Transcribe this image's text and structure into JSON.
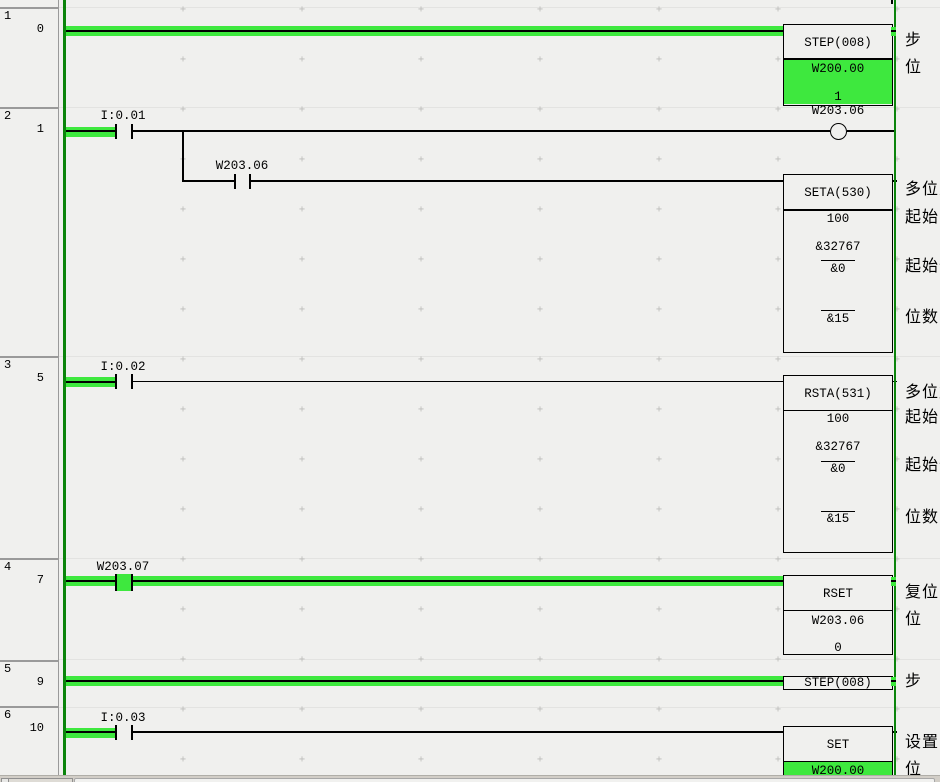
{
  "editor": {
    "colors": {
      "power": "#3ee83e",
      "bus": "#0b840b",
      "background": "#f0f0ee"
    },
    "rung_margin": [
      {
        "number": "1",
        "step": "0"
      },
      {
        "number": "2",
        "step": "1"
      },
      {
        "number": "3",
        "step": "5"
      },
      {
        "number": "4",
        "step": "7"
      },
      {
        "number": "5",
        "step": "9"
      },
      {
        "number": "6",
        "step": "10"
      }
    ],
    "contacts": {
      "i001": "I:0.01",
      "w20306": "W203.06",
      "i002": "I:0.02",
      "w20307": "W203.07",
      "i003": "I:0.03"
    },
    "coil": {
      "operand": "W203.06"
    },
    "blocks": {
      "step1": {
        "mnemonic": "STEP(008)",
        "operand": "W200.00",
        "value": "1"
      },
      "seta": {
        "mnemonic": "SETA(530)",
        "op1": "100",
        "op1_value": "&32767",
        "op2": "&0",
        "op3": "&15"
      },
      "rsta": {
        "mnemonic": "RSTA(531)",
        "op1": "100",
        "op1_value": "&32767",
        "op2": "&0",
        "op3": "&15"
      },
      "rset": {
        "mnemonic": "RSET",
        "operand": "W203.06",
        "value": "0"
      },
      "step2": {
        "mnemonic": "STEP(008)"
      },
      "set": {
        "mnemonic": "SET",
        "operand": "W200.00"
      }
    },
    "annotations": {
      "step1_l1": "步",
      "step1_l2": "位",
      "seta_l1": "多位置位",
      "seta_l2": "起始字",
      "seta_l3": "起始位",
      "seta_l4": "位数",
      "rsta_l1": "多位复位",
      "rsta_l2": "起始字",
      "rsta_l3": "起始位",
      "rsta_l4": "位数",
      "rset_l1": "复位",
      "rset_l2": "位",
      "step2_l1": "步",
      "set_l1": "设置",
      "set_l2": "位"
    }
  }
}
